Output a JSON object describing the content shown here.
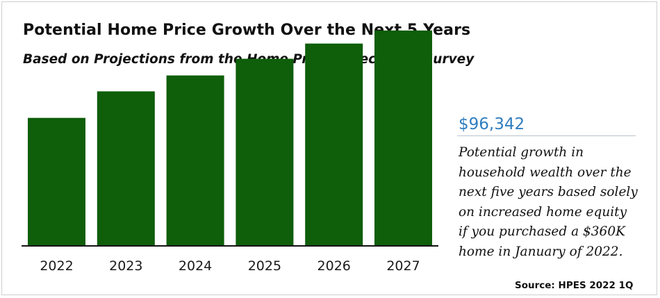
{
  "header": {
    "title": "Potential Home Price Growth Over the Next 5 Years",
    "subtitle": "Based on Projections from the Home Price Expectation Survey"
  },
  "callout": {
    "value": "$96,342",
    "text": "Potential growth in household wealth over the next five years based solely on increased home equity if you purchased a $360K home in January of 2022."
  },
  "source": "Source: HPES 2022 1Q",
  "colors": {
    "bar": "#0e5e0a",
    "callout_value": "#2f7dc0",
    "baseline": "#111111"
  },
  "chart_data": {
    "type": "bar",
    "categories": [
      "2022",
      "2023",
      "2024",
      "2025",
      "2026",
      "2027"
    ],
    "values": [
      360,
      435,
      480,
      527,
      570,
      607
    ],
    "ylim": [
      0,
      650
    ],
    "grid": false,
    "legend": "none",
    "title": "",
    "xlabel": "",
    "ylabel": ""
  }
}
